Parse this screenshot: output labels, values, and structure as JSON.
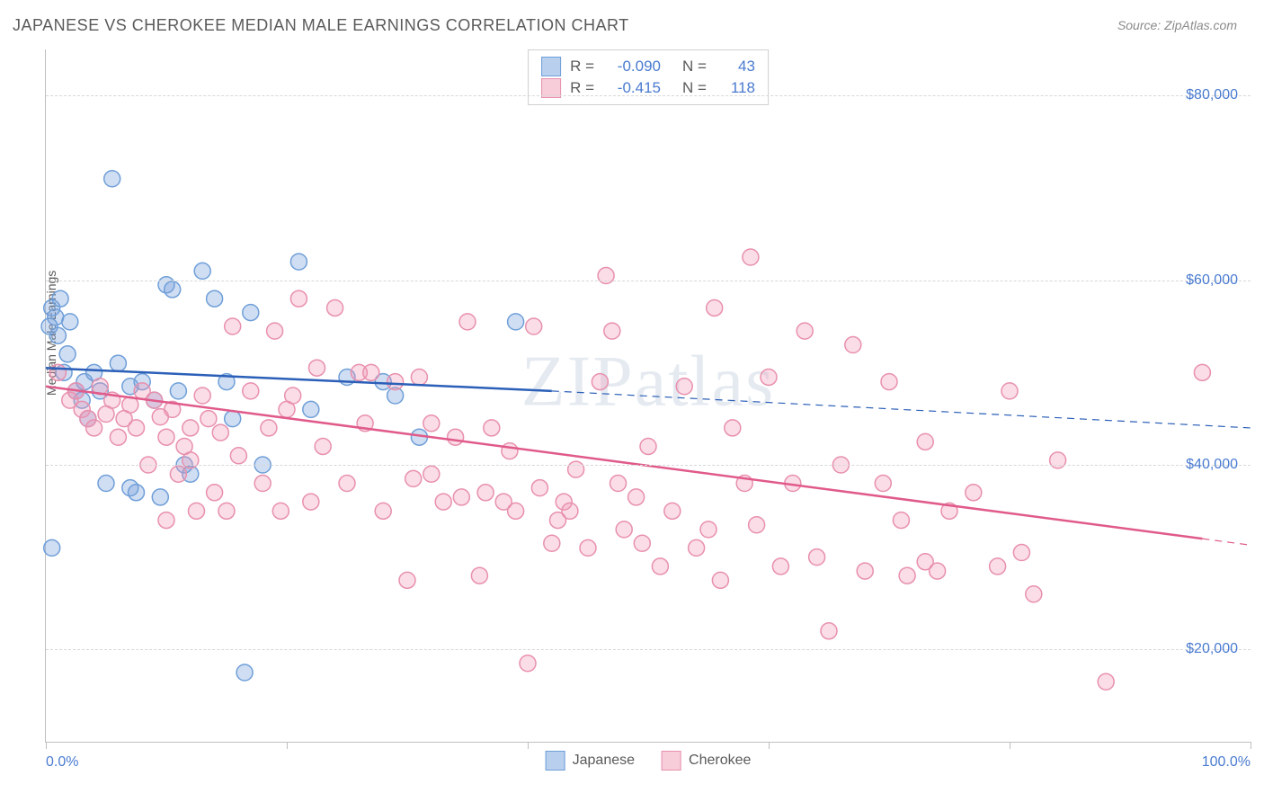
{
  "title": "JAPANESE VS CHEROKEE MEDIAN MALE EARNINGS CORRELATION CHART",
  "source": "Source: ZipAtlas.com",
  "watermark": "ZIPatlas",
  "ylabel": "Median Male Earnings",
  "chart": {
    "type": "scatter",
    "background_color": "#ffffff",
    "grid_color": "#d8d8d8",
    "axis_color": "#bfbfbf",
    "title_color": "#5a5a5a",
    "title_fontsize": 18,
    "label_fontsize": 14,
    "tick_label_color": "#4a7bd0",
    "tick_fontsize": 16,
    "xlim": [
      0,
      100
    ],
    "ylim": [
      10000,
      85000
    ],
    "yticks": [
      20000,
      40000,
      60000,
      80000
    ],
    "ytick_labels": [
      "$20,000",
      "$40,000",
      "$60,000",
      "$80,000"
    ],
    "xtick_positions": [
      0,
      20,
      40,
      60,
      80,
      100
    ],
    "xtick_labels": {
      "0": "0.0%",
      "100": "100.0%"
    },
    "marker_radius": 9,
    "marker_stroke_width": 1.5,
    "trendline_width_solid": 2.5,
    "trendline_width_dashed": 1.2,
    "series": [
      {
        "name": "Japanese",
        "color_fill": "rgba(120,160,220,0.35)",
        "color_stroke": "#6f9fd8",
        "swatch_fill": "#b8cfee",
        "swatch_border": "#6f9fd8",
        "R": "-0.090",
        "N": "43",
        "trend_start": {
          "x": 0,
          "y": 50500
        },
        "trend_solid_end": {
          "x": 42,
          "y": 48000
        },
        "trend_dash_end": {
          "x": 100,
          "y": 44000
        },
        "points": [
          {
            "x": 0.5,
            "y": 57000
          },
          {
            "x": 0.8,
            "y": 56000
          },
          {
            "x": 0.3,
            "y": 55000
          },
          {
            "x": 1.2,
            "y": 58000
          },
          {
            "x": 1.0,
            "y": 54000
          },
          {
            "x": 1.5,
            "y": 50000
          },
          {
            "x": 1.8,
            "y": 52000
          },
          {
            "x": 2.0,
            "y": 55500
          },
          {
            "x": 5.5,
            "y": 71000
          },
          {
            "x": 2.5,
            "y": 48000
          },
          {
            "x": 3.0,
            "y": 47000
          },
          {
            "x": 3.2,
            "y": 49000
          },
          {
            "x": 3.5,
            "y": 45000
          },
          {
            "x": 4.0,
            "y": 50000
          },
          {
            "x": 4.5,
            "y": 48000
          },
          {
            "x": 5.0,
            "y": 38000
          },
          {
            "x": 6.0,
            "y": 51000
          },
          {
            "x": 7.0,
            "y": 48500
          },
          {
            "x": 7.5,
            "y": 37000
          },
          {
            "x": 8.0,
            "y": 49000
          },
          {
            "x": 9.0,
            "y": 47000
          },
          {
            "x": 9.5,
            "y": 36500
          },
          {
            "x": 10.0,
            "y": 59500
          },
          {
            "x": 10.5,
            "y": 59000
          },
          {
            "x": 11.0,
            "y": 48000
          },
          {
            "x": 11.5,
            "y": 40000
          },
          {
            "x": 12.0,
            "y": 39000
          },
          {
            "x": 13.0,
            "y": 61000
          },
          {
            "x": 14.0,
            "y": 58000
          },
          {
            "x": 15.0,
            "y": 49000
          },
          {
            "x": 0.5,
            "y": 31000
          },
          {
            "x": 15.5,
            "y": 45000
          },
          {
            "x": 16.5,
            "y": 17500
          },
          {
            "x": 17.0,
            "y": 56500
          },
          {
            "x": 18.0,
            "y": 40000
          },
          {
            "x": 21.0,
            "y": 62000
          },
          {
            "x": 22.0,
            "y": 46000
          },
          {
            "x": 25.0,
            "y": 49500
          },
          {
            "x": 28.0,
            "y": 49000
          },
          {
            "x": 29.0,
            "y": 47500
          },
          {
            "x": 31.0,
            "y": 43000
          },
          {
            "x": 39.0,
            "y": 55500
          },
          {
            "x": 7.0,
            "y": 37500
          }
        ]
      },
      {
        "name": "Cherokee",
        "color_fill": "rgba(240,150,180,0.32)",
        "color_stroke": "#e890ad",
        "swatch_fill": "#f6cdd9",
        "swatch_border": "#e890ad",
        "R": "-0.415",
        "N": "118",
        "trend_start": {
          "x": 0,
          "y": 48500
        },
        "trend_solid_end": {
          "x": 96,
          "y": 32000
        },
        "trend_dash_end": {
          "x": 100,
          "y": 31300
        },
        "points": [
          {
            "x": 1,
            "y": 50000
          },
          {
            "x": 2,
            "y": 47000
          },
          {
            "x": 2.5,
            "y": 48000
          },
          {
            "x": 3,
            "y": 46000
          },
          {
            "x": 3.5,
            "y": 45000
          },
          {
            "x": 4,
            "y": 44000
          },
          {
            "x": 4.5,
            "y": 48500
          },
          {
            "x": 5,
            "y": 45500
          },
          {
            "x": 5.5,
            "y": 47000
          },
          {
            "x": 6,
            "y": 43000
          },
          {
            "x": 6.5,
            "y": 45000
          },
          {
            "x": 7,
            "y": 46500
          },
          {
            "x": 7.5,
            "y": 44000
          },
          {
            "x": 8,
            "y": 48000
          },
          {
            "x": 8.5,
            "y": 40000
          },
          {
            "x": 9,
            "y": 47000
          },
          {
            "x": 9.5,
            "y": 45200
          },
          {
            "x": 10,
            "y": 43000
          },
          {
            "x": 10.5,
            "y": 46000
          },
          {
            "x": 11,
            "y": 39000
          },
          {
            "x": 11.5,
            "y": 42000
          },
          {
            "x": 12,
            "y": 44000
          },
          {
            "x": 12.5,
            "y": 35000
          },
          {
            "x": 13,
            "y": 47500
          },
          {
            "x": 13.5,
            "y": 45000
          },
          {
            "x": 14,
            "y": 37000
          },
          {
            "x": 14.5,
            "y": 43500
          },
          {
            "x": 15,
            "y": 35000
          },
          {
            "x": 15.5,
            "y": 55000
          },
          {
            "x": 16,
            "y": 41000
          },
          {
            "x": 17,
            "y": 48000
          },
          {
            "x": 18,
            "y": 38000
          },
          {
            "x": 18.5,
            "y": 44000
          },
          {
            "x": 19,
            "y": 54500
          },
          {
            "x": 19.5,
            "y": 35000
          },
          {
            "x": 20,
            "y": 46000
          },
          {
            "x": 20.5,
            "y": 47500
          },
          {
            "x": 21,
            "y": 58000
          },
          {
            "x": 22,
            "y": 36000
          },
          {
            "x": 23,
            "y": 42000
          },
          {
            "x": 24,
            "y": 57000
          },
          {
            "x": 25,
            "y": 38000
          },
          {
            "x": 26,
            "y": 50000
          },
          {
            "x": 26.5,
            "y": 44500
          },
          {
            "x": 27,
            "y": 50000
          },
          {
            "x": 28,
            "y": 35000
          },
          {
            "x": 29,
            "y": 49000
          },
          {
            "x": 30,
            "y": 27500
          },
          {
            "x": 30.5,
            "y": 38500
          },
          {
            "x": 31,
            "y": 49500
          },
          {
            "x": 32,
            "y": 39000
          },
          {
            "x": 32,
            "y": 44500
          },
          {
            "x": 33,
            "y": 36000
          },
          {
            "x": 34,
            "y": 43000
          },
          {
            "x": 34.5,
            "y": 36500
          },
          {
            "x": 35,
            "y": 55500
          },
          {
            "x": 36,
            "y": 28000
          },
          {
            "x": 36.5,
            "y": 37000
          },
          {
            "x": 37,
            "y": 44000
          },
          {
            "x": 38,
            "y": 36000
          },
          {
            "x": 38.5,
            "y": 41500
          },
          {
            "x": 39,
            "y": 35000
          },
          {
            "x": 40,
            "y": 18500
          },
          {
            "x": 40.5,
            "y": 55000
          },
          {
            "x": 41,
            "y": 37500
          },
          {
            "x": 42,
            "y": 31500
          },
          {
            "x": 42.5,
            "y": 34000
          },
          {
            "x": 43,
            "y": 36000
          },
          {
            "x": 43.5,
            "y": 35000
          },
          {
            "x": 44,
            "y": 39500
          },
          {
            "x": 45,
            "y": 31000
          },
          {
            "x": 46,
            "y": 49000
          },
          {
            "x": 46.5,
            "y": 60500
          },
          {
            "x": 47,
            "y": 54500
          },
          {
            "x": 47.5,
            "y": 38000
          },
          {
            "x": 48,
            "y": 33000
          },
          {
            "x": 49,
            "y": 36500
          },
          {
            "x": 49.5,
            "y": 31500
          },
          {
            "x": 50,
            "y": 42000
          },
          {
            "x": 51,
            "y": 29000
          },
          {
            "x": 52,
            "y": 35000
          },
          {
            "x": 53,
            "y": 48500
          },
          {
            "x": 54,
            "y": 31000
          },
          {
            "x": 55,
            "y": 33000
          },
          {
            "x": 55.5,
            "y": 57000
          },
          {
            "x": 56,
            "y": 27500
          },
          {
            "x": 57,
            "y": 44000
          },
          {
            "x": 58,
            "y": 38000
          },
          {
            "x": 58.5,
            "y": 62500
          },
          {
            "x": 59,
            "y": 33500
          },
          {
            "x": 60,
            "y": 49500
          },
          {
            "x": 61,
            "y": 29000
          },
          {
            "x": 62,
            "y": 38000
          },
          {
            "x": 63,
            "y": 54500
          },
          {
            "x": 64,
            "y": 30000
          },
          {
            "x": 65,
            "y": 22000
          },
          {
            "x": 66,
            "y": 40000
          },
          {
            "x": 67,
            "y": 53000
          },
          {
            "x": 68,
            "y": 28500
          },
          {
            "x": 69.5,
            "y": 38000
          },
          {
            "x": 70,
            "y": 49000
          },
          {
            "x": 71,
            "y": 34000
          },
          {
            "x": 71.5,
            "y": 28000
          },
          {
            "x": 73,
            "y": 42500
          },
          {
            "x": 73,
            "y": 29500
          },
          {
            "x": 74,
            "y": 28500
          },
          {
            "x": 75,
            "y": 35000
          },
          {
            "x": 77,
            "y": 37000
          },
          {
            "x": 79,
            "y": 29000
          },
          {
            "x": 80,
            "y": 48000
          },
          {
            "x": 81,
            "y": 30500
          },
          {
            "x": 82,
            "y": 26000
          },
          {
            "x": 84,
            "y": 40500
          },
          {
            "x": 88,
            "y": 16500
          },
          {
            "x": 96,
            "y": 50000
          },
          {
            "x": 10,
            "y": 34000
          },
          {
            "x": 12,
            "y": 40500
          },
          {
            "x": 22.5,
            "y": 50500
          }
        ]
      }
    ]
  },
  "legend_bottom": [
    {
      "label": "Japanese",
      "series": 0
    },
    {
      "label": "Cherokee",
      "series": 1
    }
  ]
}
